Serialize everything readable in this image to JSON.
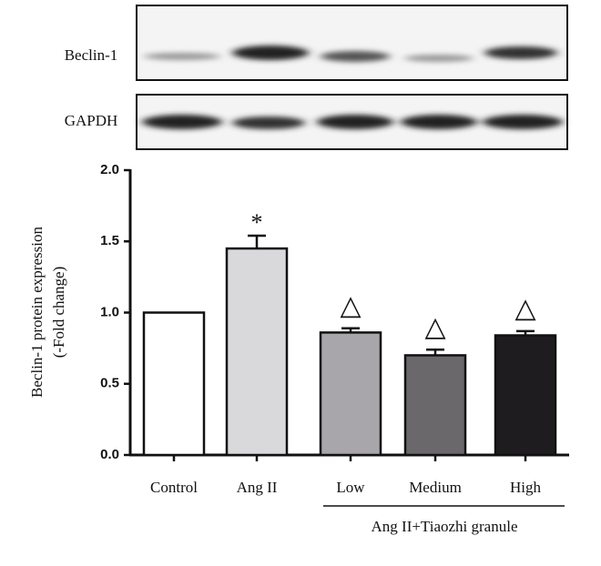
{
  "chart_data": {
    "type": "bar",
    "blot_labels": [
      "Beclin-1",
      "GAPDH"
    ],
    "ylabel": [
      "Beclin-1 protein expression",
      "(-Fold change)"
    ],
    "categories": [
      "Control",
      "Ang II",
      "Low",
      "Medium",
      "High"
    ],
    "values": [
      1.0,
      1.45,
      0.86,
      0.7,
      0.84
    ],
    "errors": [
      null,
      0.09,
      0.03,
      0.04,
      0.03
    ],
    "colors": [
      "#ffffff",
      "#d9d9dc",
      "#a8a6aa",
      "#6b686b",
      "#1e1c1e"
    ],
    "annotations": [
      null,
      "*",
      "△",
      "△",
      "△"
    ],
    "group_label": "Ang II+Tiaozhi granule",
    "ylim": [
      0,
      2.0
    ],
    "yticks": [
      {
        "value": 0,
        "label": "0.0"
      },
      0.5,
      {
        "value": 1,
        "label": "1.0"
      },
      1.5,
      {
        "value": 2,
        "label": "2.0"
      }
    ],
    "grid": false
  }
}
